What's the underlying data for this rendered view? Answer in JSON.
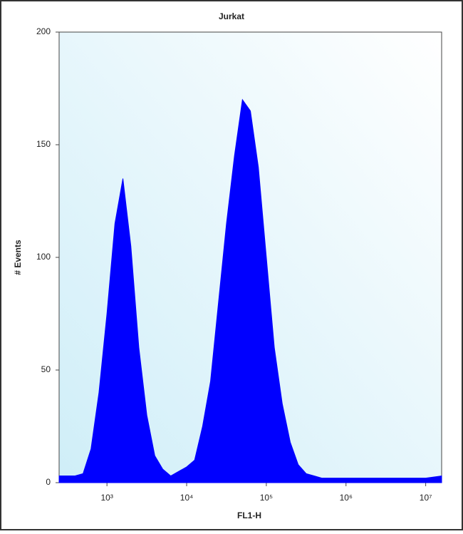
{
  "chart_data": {
    "type": "area",
    "title": "Jurkat",
    "xlabel": "FL1-H",
    "ylabel": "# Events",
    "log_x": true,
    "color": "#0000ff",
    "x": [
      251,
      316,
      398,
      501,
      631,
      794,
      1000,
      1259,
      1585,
      1995,
      2512,
      3162,
      3981,
      5012,
      6310,
      7943,
      10000,
      12589,
      15849,
      19953,
      25119,
      31623,
      39811,
      50119,
      63096,
      79433,
      100000,
      125893,
      158489,
      199526,
      251189,
      316228,
      398107,
      501187,
      630957,
      794328,
      1000000,
      3162278,
      10000000,
      15848932
    ],
    "values": [
      3,
      3,
      3,
      4,
      15,
      40,
      75,
      115,
      135,
      105,
      60,
      30,
      12,
      6,
      3,
      5,
      7,
      10,
      25,
      45,
      80,
      115,
      145,
      170,
      165,
      140,
      100,
      60,
      35,
      18,
      8,
      4,
      3,
      2,
      2,
      2,
      2,
      2,
      2,
      3
    ],
    "xlim": [
      251,
      15848932
    ],
    "xticks": [
      {
        "value": 1000,
        "label": "10³"
      },
      {
        "value": 10000,
        "label": "10⁴"
      },
      {
        "value": 100000,
        "label": "10⁵"
      },
      {
        "value": 1000000,
        "label": "10⁶"
      },
      {
        "value": 10000000,
        "label": "10⁷"
      }
    ],
    "ylim": [
      0,
      200
    ],
    "yticks": [
      0,
      50,
      100,
      150,
      200
    ]
  }
}
